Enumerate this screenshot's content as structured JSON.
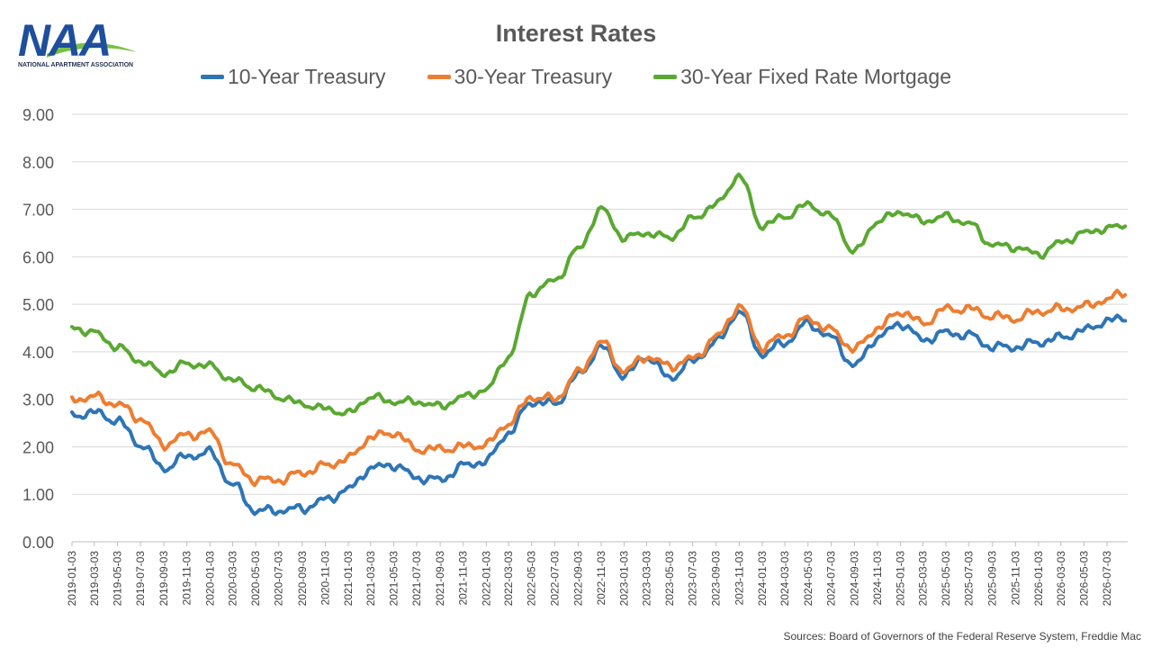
{
  "logo": {
    "letters": "NAA",
    "tagline": "NATIONAL APARTMENT ASSOCIATION",
    "colors": {
      "primary": "#1f4e9c",
      "accent": "#7ac143"
    }
  },
  "chart_data": {
    "type": "line",
    "title": "Interest Rates",
    "xlabel": "",
    "ylabel": "",
    "ylim": [
      0,
      9
    ],
    "yticks": [
      "0.00",
      "1.00",
      "2.00",
      "3.00",
      "4.00",
      "5.00",
      "6.00",
      "7.00",
      "8.00",
      "9.00"
    ],
    "xtick_labels": [
      "2019-01-03",
      "2019-03-03",
      "2019-05-03",
      "2019-07-03",
      "2019-09-03",
      "2019-11-03",
      "2020-01-03",
      "2020-03-03",
      "2020-05-03",
      "2020-07-03",
      "2020-09-03",
      "2020-11-03",
      "2021-01-03",
      "2021-03-03",
      "2021-05-03",
      "2021-07-03",
      "2021-09-03",
      "2021-11-03",
      "2022-01-03",
      "2022-03-03",
      "2022-05-03",
      "2022-07-03",
      "2022-09-03",
      "2022-11-03",
      "2023-01-03",
      "2023-03-03",
      "2023-05-03",
      "2023-07-03",
      "2023-09-03",
      "2023-11-03",
      "2024-01-03",
      "2024-03-03",
      "2024-05-03",
      "2024-07-03",
      "2024-09-03",
      "2024-11-03",
      "2025-01-03",
      "2025-03-03",
      "2025-05-03",
      "2025-07-03",
      "2025-09-03",
      "2025-11-03",
      "2026-01-03",
      "2026-03-03",
      "2026-05-03",
      "2026-07-03"
    ],
    "x_range": [
      "2019-01-03",
      "2026-08-20"
    ],
    "grid": true,
    "legend_position": "top",
    "x": [
      "2019-01-03",
      "2019-03-03",
      "2019-05-03",
      "2019-07-03",
      "2019-09-03",
      "2019-11-03",
      "2020-01-03",
      "2020-03-03",
      "2020-05-03",
      "2020-07-03",
      "2020-09-03",
      "2020-11-03",
      "2021-01-03",
      "2021-03-03",
      "2021-05-03",
      "2021-07-03",
      "2021-09-03",
      "2021-11-03",
      "2022-01-03",
      "2022-03-03",
      "2022-05-03",
      "2022-07-03",
      "2022-09-03",
      "2022-11-03",
      "2023-01-03",
      "2023-03-03",
      "2023-05-03",
      "2023-07-03",
      "2023-09-03",
      "2023-11-03",
      "2024-01-03",
      "2024-03-03",
      "2024-05-03",
      "2024-07-03",
      "2024-09-03",
      "2024-11-03",
      "2025-01-03",
      "2025-03-03",
      "2025-05-03",
      "2025-07-03",
      "2025-09-03",
      "2025-11-03",
      "2026-01-03",
      "2026-03-03",
      "2026-05-03",
      "2026-07-03",
      "2026-08-20"
    ],
    "series": [
      {
        "name": "10-Year Treasury",
        "color": "#2e75b6",
        "values": [
          2.66,
          2.72,
          2.55,
          2.05,
          1.55,
          1.8,
          1.88,
          1.2,
          0.65,
          0.66,
          0.7,
          0.88,
          1.1,
          1.55,
          1.62,
          1.35,
          1.3,
          1.6,
          1.7,
          2.3,
          2.95,
          2.9,
          3.5,
          4.1,
          3.5,
          3.9,
          3.45,
          3.8,
          4.2,
          4.85,
          3.95,
          4.2,
          4.6,
          4.3,
          3.7,
          4.3,
          4.6,
          4.25,
          4.4,
          4.35,
          4.1,
          4.1,
          4.2,
          4.3,
          4.45,
          4.65,
          4.7
        ]
      },
      {
        "name": "30-Year Treasury",
        "color": "#ed7d31",
        "values": [
          3.0,
          3.05,
          2.9,
          2.6,
          2.05,
          2.25,
          2.3,
          1.6,
          1.3,
          1.3,
          1.45,
          1.6,
          1.75,
          2.2,
          2.3,
          1.95,
          1.95,
          2.0,
          2.05,
          2.5,
          3.05,
          3.0,
          3.55,
          4.2,
          3.6,
          3.9,
          3.7,
          3.85,
          4.3,
          4.95,
          4.1,
          4.35,
          4.7,
          4.45,
          4.05,
          4.5,
          4.85,
          4.6,
          4.9,
          4.9,
          4.75,
          4.7,
          4.85,
          4.9,
          4.95,
          5.1,
          5.25
        ]
      },
      {
        "name": "30-Year Fixed Rate Mortgage",
        "color": "#5aa832",
        "values": [
          4.51,
          4.4,
          4.1,
          3.8,
          3.55,
          3.75,
          3.7,
          3.4,
          3.25,
          3.05,
          2.9,
          2.8,
          2.7,
          3.05,
          2.95,
          2.95,
          2.85,
          3.05,
          3.2,
          3.9,
          5.25,
          5.5,
          6.15,
          7.0,
          6.4,
          6.5,
          6.4,
          6.8,
          7.1,
          7.7,
          6.65,
          6.85,
          7.1,
          6.85,
          6.1,
          6.75,
          6.95,
          6.75,
          6.85,
          6.7,
          6.25,
          6.2,
          6.05,
          6.3,
          6.5,
          6.6,
          6.65
        ]
      }
    ]
  },
  "source_note": "Sources: Board of Governors of the Federal Reserve System, Freddie Mac"
}
